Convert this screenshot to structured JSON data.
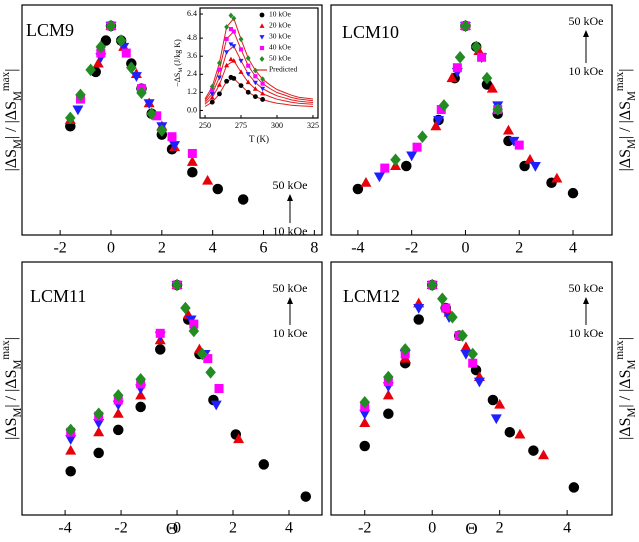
{
  "chart_data": [
    {
      "type": "scatter",
      "title": "LCM9",
      "ylabel": [
        "|ΔS",
        "M",
        "| / |ΔS",
        "M",
        "max",
        "|"
      ],
      "xlim": [
        -3.5,
        8.3
      ],
      "ylim": [
        0,
        1.1
      ],
      "xticks": [
        -2,
        0,
        2,
        4,
        6,
        8
      ],
      "annotations": [
        "50 kOe",
        "10 kOe"
      ],
      "series": [
        {
          "color": "#000000",
          "marker": "circle",
          "x": [
            -1.6,
            -0.6,
            -0.2,
            0,
            0.4,
            0.8,
            1.2,
            1.6,
            2.0,
            2.4,
            3.2,
            4.2,
            5.2
          ],
          "values": [
            0.52,
            0.78,
            0.93,
            1.0,
            0.93,
            0.82,
            0.7,
            0.58,
            0.48,
            0.41,
            0.3,
            0.22,
            0.17
          ]
        },
        {
          "color": "#e8000b",
          "marker": "triangle-up",
          "x": [
            -1.6,
            -0.5,
            0,
            0.5,
            1.0,
            1.5,
            2.0,
            2.5,
            3.2,
            3.8
          ],
          "values": [
            0.55,
            0.82,
            1.0,
            0.9,
            0.77,
            0.63,
            0.52,
            0.42,
            0.35,
            0.26
          ]
        },
        {
          "color": "#1f1fff",
          "marker": "triangle-down",
          "x": [
            -1.3,
            -0.4,
            0,
            0.5,
            1.0,
            1.5,
            2.0,
            2.5
          ],
          "values": [
            0.6,
            0.85,
            1.0,
            0.9,
            0.76,
            0.63,
            0.52,
            0.43
          ]
        },
        {
          "color": "#ff00ff",
          "marker": "square",
          "x": [
            -1.2,
            -0.4,
            0,
            0.6,
            1.2,
            1.8,
            2.4,
            3.2
          ],
          "values": [
            0.65,
            0.87,
            1.0,
            0.87,
            0.7,
            0.57,
            0.47,
            0.39
          ]
        },
        {
          "color": "#228b22",
          "marker": "diamond",
          "x": [
            -1.6,
            -1.2,
            -0.8,
            -0.4,
            0,
            0.4,
            0.8,
            1.2,
            1.6,
            2.0
          ],
          "values": [
            0.56,
            0.67,
            0.79,
            0.9,
            1.0,
            0.93,
            0.8,
            0.68,
            0.58,
            0.5
          ]
        }
      ]
    },
    {
      "type": "scatter",
      "title": "LCM10",
      "ylabel": [
        "|ΔS",
        "M",
        "| / |ΔS",
        "M",
        "max",
        "|"
      ],
      "xlim": [
        -5.0,
        5.45
      ],
      "ylim": [
        0,
        1.1
      ],
      "xticks": [
        -4,
        -2,
        0,
        2,
        4
      ],
      "annotations": [
        "50 kOe",
        "10 kOe"
      ],
      "series": [
        {
          "color": "#000000",
          "marker": "circle",
          "x": [
            -4,
            -2.2,
            -1,
            -0.4,
            0,
            0.4,
            0.8,
            1.2,
            1.6,
            2.2,
            3.2,
            4
          ],
          "values": [
            0.22,
            0.33,
            0.55,
            0.75,
            1.0,
            0.9,
            0.72,
            0.58,
            0.45,
            0.33,
            0.25,
            0.2
          ]
        },
        {
          "color": "#e8000b",
          "marker": "triangle-up",
          "x": [
            -3.7,
            -2.6,
            -1.1,
            -0.5,
            0,
            0.5,
            1.0,
            1.6,
            2.4,
            3.4
          ],
          "values": [
            0.25,
            0.33,
            0.52,
            0.75,
            1.0,
            0.88,
            0.7,
            0.5,
            0.36,
            0.27
          ]
        },
        {
          "color": "#1f1fff",
          "marker": "triangle-down",
          "x": [
            -3.2,
            -2.0,
            -1.0,
            -0.3,
            0,
            0.6,
            1.2,
            1.8,
            2.6
          ],
          "values": [
            0.28,
            0.38,
            0.55,
            0.78,
            1.0,
            0.85,
            0.62,
            0.45,
            0.33
          ]
        },
        {
          "color": "#ff00ff",
          "marker": "square",
          "x": [
            -3.0,
            -1.8,
            -0.9,
            -0.3,
            0,
            0.6,
            1.2,
            2.0
          ],
          "values": [
            0.32,
            0.42,
            0.6,
            0.8,
            1.0,
            0.85,
            0.6,
            0.43
          ]
        },
        {
          "color": "#228b22",
          "marker": "diamond",
          "x": [
            -2.6,
            -1.6,
            -0.8,
            -0.2,
            0,
            0.4,
            0.8,
            1.2
          ],
          "values": [
            0.36,
            0.47,
            0.62,
            0.85,
            1.0,
            0.9,
            0.75,
            0.6
          ]
        }
      ]
    },
    {
      "type": "scatter",
      "title": "LCM11",
      "ylabel": [
        "|ΔS",
        "M",
        "| / |ΔS",
        "M",
        "max",
        "|"
      ],
      "xlabel": "Θ",
      "xlim": [
        -5.54,
        5.18
      ],
      "ylim": [
        0,
        1.1
      ],
      "xticks": [
        -4,
        -2,
        0,
        2,
        4
      ],
      "annotations": [
        "50 kOe",
        "10 kOe"
      ],
      "series": [
        {
          "color": "#000000",
          "marker": "circle",
          "x": [
            -3.8,
            -2.8,
            -2.1,
            -1.3,
            -0.6,
            0,
            0.4,
            0.8,
            1.3,
            2.1,
            3.1,
            4.6
          ],
          "values": [
            0.19,
            0.27,
            0.37,
            0.47,
            0.72,
            1.0,
            0.85,
            0.7,
            0.5,
            0.35,
            0.22,
            0.08
          ]
        },
        {
          "color": "#e8000b",
          "marker": "triangle-up",
          "x": [
            -3.8,
            -2.8,
            -2.1,
            -1.3,
            -0.6,
            0,
            0.4,
            0.8,
            2.2
          ],
          "values": [
            0.28,
            0.36,
            0.44,
            0.52,
            0.76,
            1.0,
            0.87,
            0.72,
            0.33
          ]
        },
        {
          "color": "#1f1fff",
          "marker": "triangle-down",
          "x": [
            -3.8,
            -2.8,
            -2.1,
            -1.3,
            -0.6,
            0,
            0.5,
            1.0,
            1.4
          ],
          "values": [
            0.33,
            0.4,
            0.48,
            0.55,
            0.78,
            1.0,
            0.85,
            0.7,
            0.48
          ]
        },
        {
          "color": "#ff00ff",
          "marker": "square",
          "x": [
            -3.8,
            -2.8,
            -2.1,
            -1.3,
            -0.6,
            0,
            0.6,
            1.1,
            1.5
          ],
          "values": [
            0.36,
            0.43,
            0.5,
            0.57,
            0.79,
            1.0,
            0.83,
            0.68,
            0.55
          ]
        },
        {
          "color": "#228b22",
          "marker": "diamond",
          "x": [
            -3.8,
            -2.8,
            -2.1,
            -1.3,
            0,
            0.3,
            0.6,
            0.9,
            1.2
          ],
          "values": [
            0.37,
            0.44,
            0.52,
            0.59,
            1.0,
            0.9,
            0.8,
            0.7,
            0.62
          ]
        }
      ]
    },
    {
      "type": "scatter",
      "title": "LCM12",
      "ylabel": [
        "|ΔS",
        "M",
        "| / |ΔS",
        "M",
        "max",
        "|"
      ],
      "xlabel": "Θ",
      "xlim": [
        -3.0,
        5.33
      ],
      "ylim": [
        0,
        1.1
      ],
      "xticks": [
        -2,
        0,
        2,
        4
      ],
      "annotations": [
        "50 kOe",
        "10 kOe"
      ],
      "series": [
        {
          "color": "#000000",
          "marker": "circle",
          "x": [
            -2,
            -1.3,
            -0.8,
            -0.4,
            0,
            0.4,
            0.8,
            1.3,
            1.8,
            2.3,
            3,
            4.2
          ],
          "values": [
            0.3,
            0.44,
            0.66,
            0.85,
            1.0,
            0.9,
            0.78,
            0.63,
            0.5,
            0.36,
            0.28,
            0.12
          ]
        },
        {
          "color": "#e8000b",
          "marker": "triangle-up",
          "x": [
            -2,
            -1.3,
            -0.8,
            -0.4,
            0,
            0.5,
            1.0,
            1.4,
            2,
            2.6,
            3.3
          ],
          "values": [
            0.4,
            0.52,
            0.68,
            0.92,
            1.0,
            0.88,
            0.73,
            0.6,
            0.48,
            0.35,
            0.26
          ]
        },
        {
          "color": "#1f1fff",
          "marker": "triangle-down",
          "x": [
            -2,
            -1.3,
            -0.8,
            -0.4,
            0,
            0.5,
            1.0,
            1.4,
            1.9
          ],
          "values": [
            0.44,
            0.56,
            0.7,
            0.9,
            1.0,
            0.86,
            0.7,
            0.58,
            0.42
          ]
        },
        {
          "color": "#ff00ff",
          "marker": "square",
          "x": [
            -2,
            -1.3,
            -0.8,
            0,
            0.4,
            0.8,
            1.2
          ],
          "values": [
            0.47,
            0.58,
            0.7,
            1.0,
            0.9,
            0.78,
            0.66
          ]
        },
        {
          "color": "#228b22",
          "marker": "diamond",
          "x": [
            -2,
            -1.3,
            -0.8,
            0,
            0.3,
            0.6,
            0.9,
            1.2
          ],
          "values": [
            0.49,
            0.6,
            0.72,
            1.0,
            0.94,
            0.86,
            0.78,
            0.7
          ]
        }
      ]
    },
    {
      "type": "scatter",
      "xlabel": "T (K)",
      "ylabel": [
        "−ΔS",
        "M",
        " (J/kg K)"
      ],
      "xlim": [
        246.5,
        328.5
      ],
      "ylim": [
        -0.5,
        6.8
      ],
      "xticks": [
        250,
        275,
        300,
        325
      ],
      "yticks": [
        {
          "value": 0,
          "label": "0.0"
        },
        1.2,
        2.4,
        3.6,
        4.8,
        6.4
      ],
      "series": [
        {
          "name": "10 kOe",
          "color": "#000000",
          "marker": "circle",
          "x": [
            255,
            260,
            265,
            268,
            270,
            275,
            280,
            285,
            290
          ],
          "values": [
            0.55,
            1.1,
            1.94,
            2.2,
            2.13,
            1.65,
            1.21,
            0.92,
            0.73
          ]
        },
        {
          "name": "20 kOe",
          "color": "#e8000b",
          "marker": "triangle-up",
          "x": [
            255,
            260,
            265,
            268,
            270,
            275,
            280,
            285,
            290
          ],
          "values": [
            0.85,
            1.7,
            2.99,
            3.4,
            3.3,
            2.55,
            1.87,
            1.43,
            1.12
          ]
        },
        {
          "name": "30 kOe",
          "color": "#1f1fff",
          "marker": "triangle-down",
          "x": [
            255,
            260,
            265,
            268,
            270,
            275,
            280,
            285,
            290
          ],
          "values": [
            1.1,
            2.2,
            3.87,
            4.4,
            4.27,
            3.3,
            2.42,
            1.85,
            1.45
          ]
        },
        {
          "name": "40 kOe",
          "color": "#ff00ff",
          "marker": "square",
          "x": [
            255,
            260,
            265,
            268,
            270,
            275,
            280,
            285,
            290
          ],
          "values": [
            1.35,
            2.7,
            4.75,
            5.4,
            5.24,
            4.05,
            2.97,
            2.27,
            1.78
          ]
        },
        {
          "name": "50 kOe",
          "color": "#228b22",
          "marker": "diamond",
          "x": [
            255,
            260,
            265,
            268,
            270,
            275,
            280,
            285,
            290
          ],
          "values": [
            1.58,
            3.15,
            5.54,
            6.3,
            6.11,
            4.73,
            3.47,
            2.65,
            2.08
          ]
        }
      ],
      "fit": {
        "name": "Predicted",
        "color": "#e02020",
        "x": [
          250,
          255,
          260,
          265,
          270,
          275,
          280,
          285,
          290,
          295,
          300,
          305,
          310,
          315,
          320,
          325
        ],
        "curves": [
          [
            0.26,
            0.55,
            1.1,
            1.94,
            2.13,
            1.65,
            1.21,
            0.92,
            0.73,
            0.59,
            0.48,
            0.42,
            0.35,
            0.31,
            0.29,
            0.26
          ],
          [
            0.41,
            0.85,
            1.7,
            2.99,
            3.3,
            2.55,
            1.87,
            1.43,
            1.12,
            0.92,
            0.75,
            0.65,
            0.54,
            0.48,
            0.44,
            0.41
          ],
          [
            0.53,
            1.1,
            2.2,
            3.87,
            4.27,
            3.3,
            2.42,
            1.85,
            1.45,
            1.19,
            0.97,
            0.84,
            0.7,
            0.62,
            0.57,
            0.53
          ],
          [
            0.65,
            1.35,
            2.7,
            4.75,
            5.24,
            4.05,
            2.97,
            2.27,
            1.78,
            1.46,
            1.19,
            1.03,
            0.86,
            0.76,
            0.7,
            0.65
          ],
          [
            0.76,
            1.58,
            3.15,
            5.54,
            6.11,
            4.73,
            3.47,
            2.65,
            2.08,
            1.7,
            1.39,
            1.2,
            1.01,
            0.88,
            0.82,
            0.76
          ]
        ]
      }
    }
  ]
}
